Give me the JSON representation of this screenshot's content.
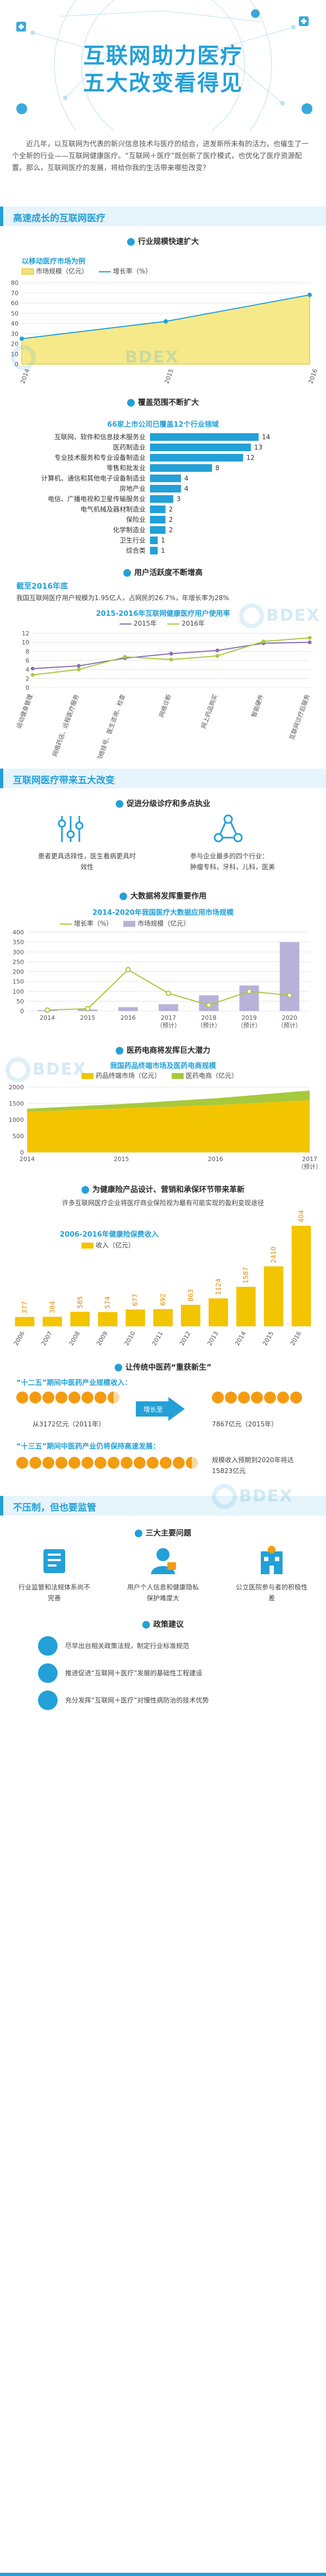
{
  "header": {
    "title_line1": "互联网助力医疗",
    "title_line2": "五大改变看得见",
    "intro": "近几年，以互联网为代表的新兴信息技术与医疗的结合，进发新所未有的活力，也催生了一个全新的行业——互联网健康医疗。“互联网＋医疗”既创新了医疗模式，也优化了医疗资源配置。那么，互联网医疗的发展，将给你我的生活带来哪些改变？"
  },
  "watermark": "BDEX",
  "section1": {
    "title": "高速成长的互联网医疗",
    "sub1": "行业规模快速扩大",
    "chart1_title": "以移动医疗市场为例",
    "sub2": "覆盖范围不断扩大",
    "hbar_title": "66家上市公司已覆盖12个行业领域",
    "sub3": "用户活跃度不断增高",
    "users_heading": "截至2016年底",
    "users_text": "我国互联网医疗用户规模为1.95亿人，占网民的26.7%，年增长率为28%",
    "chart3_title": "2015-2016年互联网健康医疗用户使用率"
  },
  "section2": {
    "title": "互联网医疗带来五大改变",
    "c1_title": "促进分级诊疗和多点执业",
    "c1_left": "患者更具选择性，医生看病更具时效性",
    "c1_right_title": "参与企业最多的四个行业：",
    "c1_right_items": "肿瘤专科，牙科，儿科，医美",
    "c2_title": "大数据将发挥重要作用",
    "c2_chart_title": "2014-2020年我国医疗大数据应用市场规模",
    "c3_title": "医药电商将发挥巨大潜力",
    "c3_chart_title": "我国药品终端市场及医药电商规模",
    "c4_title": "为健康险产品设计、营销和承保环节带来革新",
    "c4_sub": "许多互联网医疗企业将医疗商业保险视为最有可能实现的盈利变现途径",
    "c4_chart_title": "2006-2016年健康险保费收入",
    "c5_title": "让传统中医药“重获新生”",
    "c5_q1": "“十二五”期间中医药产业规模收入：",
    "c5_q1_from": "从3172亿元（2011年）",
    "c5_q1_to": "7867亿元（2015年）",
    "c5_q1_label": "增长至",
    "c5_q2": "“十三五”期间中医药产业仍将保持高速发展：",
    "c5_q2_text": "规模收入预期到2020年将达15823亿元"
  },
  "section3": {
    "title": "不压制，但也要监管",
    "p1_title": "三大主要问题",
    "problems": [
      "行业监管和法规体系尚不完善",
      "用户个人信息和健康隐私保护难度大",
      "公立医院参与者的积极性差"
    ],
    "p2_title": "政策建议",
    "policies": [
      "尽早出台相关政策法规，制定行业标准规范",
      "推进促进“互联网＋医疗”发展的基础性工程建设",
      "充分发挥“互联网＋医疗”对慢性病防治的技术优势"
    ]
  },
  "colors": {
    "accent": "#23a0d8",
    "gold": "#f3c400",
    "orange": "#f39c12",
    "green": "#a7c93d",
    "purple": "#b9b2d8"
  },
  "chart_data": [
    {
      "type": "area",
      "categories": [
        "2014",
        "2015",
        "2016"
      ],
      "series": [
        {
          "name": "市场规模（亿元）",
          "values": [
            25,
            42,
            68
          ]
        },
        {
          "name": "增长率（%）",
          "values": [
            25,
            42,
            68
          ]
        }
      ],
      "ylim": [
        0,
        80
      ],
      "yticks": [
        0,
        10,
        20,
        30,
        40,
        50,
        60,
        70,
        80
      ]
    },
    {
      "type": "bar",
      "orientation": "horizontal",
      "categories": [
        "互联网、软件和信息技术服务业",
        "医药制造业",
        "专业技术服务和专业设备制造业",
        "零售和批发业",
        "计算机、通信和其他电子设备制造业",
        "房地产业",
        "电信、广播电视和卫星传输服务业",
        "电气机械及器材制造业",
        "保险业",
        "化学制造业",
        "卫生行业",
        "综合类"
      ],
      "values": [
        14,
        13,
        12,
        8,
        4,
        4,
        3,
        2,
        2,
        2,
        1,
        1
      ]
    },
    {
      "type": "line",
      "categories": [
        "运动健身管理",
        "网络药店、远程医疗服务",
        "网络挂号、医生咨询、检查",
        "网络诊断",
        "网上药品购买",
        "智能硬件",
        "互联网诊疗后服务"
      ],
      "series": [
        {
          "name": "2015年",
          "values": [
            4.2,
            4.8,
            6.5,
            7.5,
            8.2,
            9.8,
            10.0
          ]
        },
        {
          "name": "2016年",
          "values": [
            2.8,
            4.0,
            6.8,
            6.2,
            7.0,
            10.2,
            11.0
          ]
        }
      ],
      "ylim": [
        0,
        12
      ],
      "yticks": [
        0,
        2,
        4,
        6,
        8,
        10,
        12
      ]
    },
    {
      "type": "bar",
      "categories": [
        "2014",
        "2015",
        "2016",
        "2017\n（预计）",
        "2018\n（预计）",
        "2019\n（预计）",
        "2020\n（预计）"
      ],
      "series": [
        {
          "name": "增长率（%）",
          "values": [
            5,
            12,
            210,
            90,
            30,
            100,
            80
          ]
        },
        {
          "name": "市场规模（亿元）",
          "values": [
            5,
            8,
            20,
            35,
            80,
            130,
            350
          ]
        }
      ],
      "ylim": [
        0,
        400
      ],
      "yticks": [
        0,
        50,
        100,
        150,
        200,
        250,
        300,
        350,
        400
      ]
    },
    {
      "type": "area",
      "categories": [
        "2014",
        "2015",
        "2016",
        "2017\n（预计）"
      ],
      "series": [
        {
          "name": "药品终端市场（亿元）",
          "values": [
            1250,
            1350,
            1450,
            1600
          ]
        },
        {
          "name": "医药电商（亿元）",
          "values": [
            40,
            60,
            95,
            135
          ]
        }
      ],
      "ylim": [
        0,
        2000
      ],
      "yticks": [
        0,
        500,
        1000,
        1500,
        2000
      ]
    },
    {
      "type": "bar",
      "categories": [
        "2006",
        "2007",
        "2008",
        "2009",
        "2010",
        "2011",
        "2012",
        "2013",
        "2014",
        "2015",
        "2016"
      ],
      "series": [
        {
          "name": "收入（亿元）",
          "values": [
            377,
            384,
            585,
            574,
            677,
            692,
            863,
            1124,
            1587,
            2410,
            4042
          ]
        }
      ],
      "value_labels": [
        "377",
        "384",
        "585",
        "574",
        "677",
        "692",
        "863",
        "1124",
        "1587",
        "2410",
        "4042"
      ]
    }
  ]
}
